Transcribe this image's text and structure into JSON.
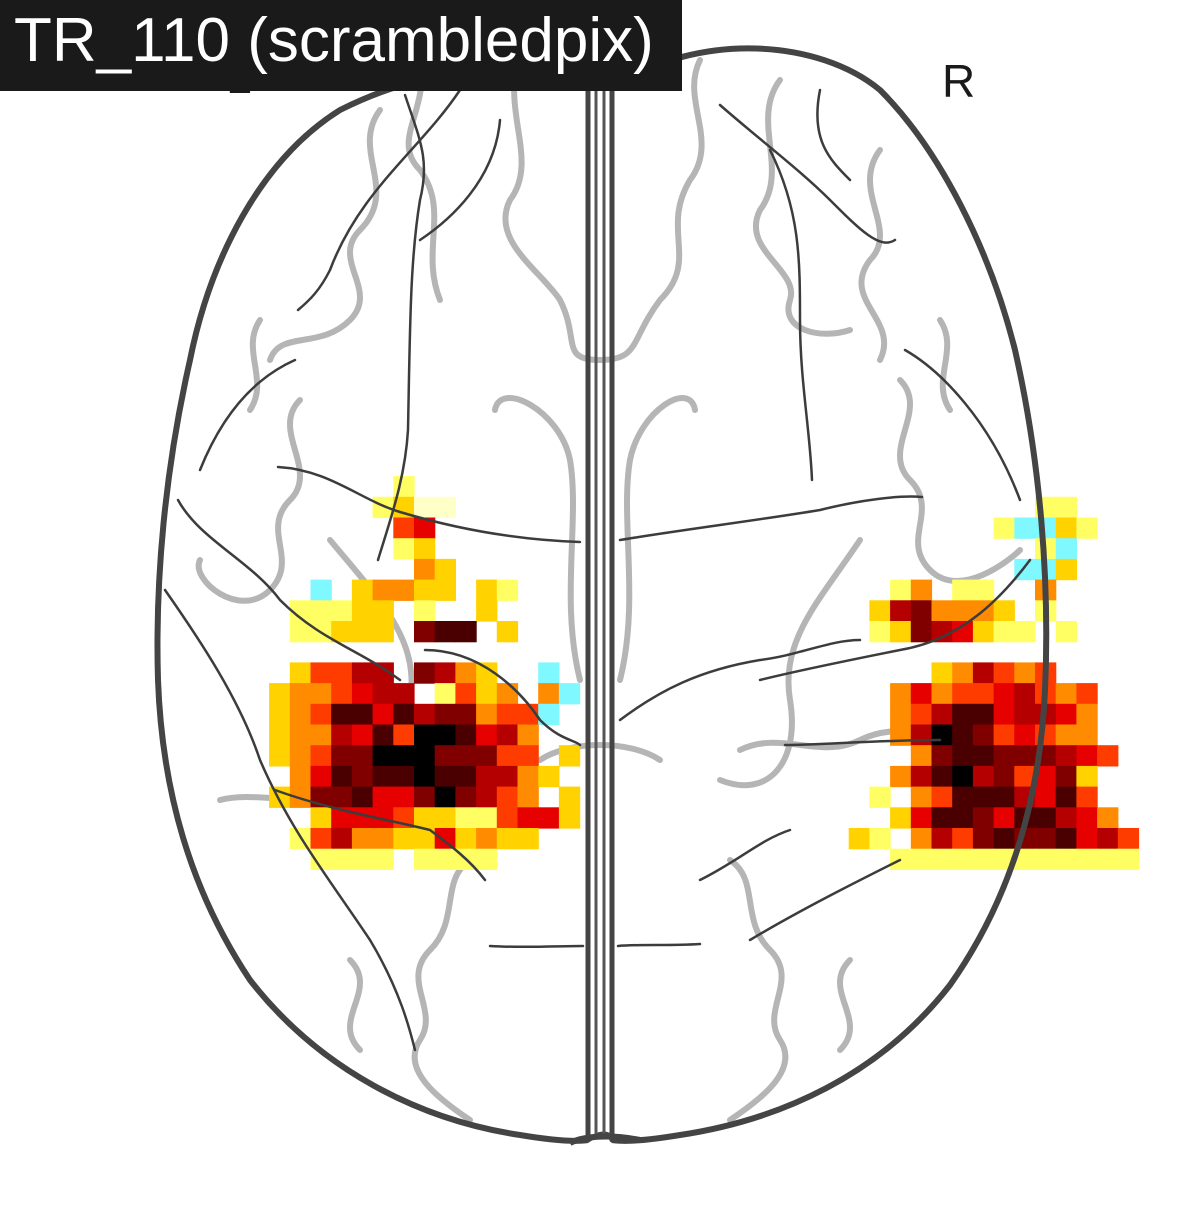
{
  "figure": {
    "title": "TR_110 (scrambledpix)",
    "view": "axial",
    "hemisphere_labels": {
      "left": "L",
      "right": "R"
    },
    "outline_color": "#444444",
    "sulci_color": "#b5b5b5",
    "colormap": [
      "#ffffc8",
      "#ffff64",
      "#ffd200",
      "#ff8c00",
      "#ff3c00",
      "#e60000",
      "#b40000",
      "#800000",
      "#4a0000",
      "#000000"
    ],
    "negative_color": "#7ff9ff",
    "activation_grid": {
      "rows": [
        "..........................................................",
        "..........................................................",
        "..........................................................",
        "..........................................................",
        "..........................................................",
        "..........................................................",
        "..........................................................",
        "..........................................................",
        "..........................................................",
        "..........................................................",
        "..........................................................",
        "..........................................................",
        "..........................................................",
        "..........................................................",
        "..........................................................",
        "..........................................................",
        "..........................................................",
        "..........................................................",
        "..........................................................",
        "..........................................................",
        "..........................................................",
        "..........................................................",
        "..........................................................",
        "...................1......................................",
        "..................1200............................11......",
        "...................45...........................1bb21.....",
        "...................12.............................1b......",
        "....................32...........................bb2......",
        "...............b.23322.21..................13.11..3.......",
        "..............11122.1..2..................2673332.1.......",
        "..............11222.788.2.................12765211.1......",
        "...........................................................",
        "..............24466.7632..b..................236434.......",
        ".............2334566.1423.3b...............3534456434......",
        ".............2348858677344a................3468856653......",
        ".............2336584998563.................3698745433.......",
        ".............2347799977744.2................3788777654......",
        "..............3587889886632................3689674572.......",
        ".............2377855797643.2..............1.348886584.......",
        "...............2555422114552...............25887588653......",
        "..............146332252322...............21.36478778564.....",
        "...............1111.1111...................111111111111.....",
        "..........................................................",
        ".........................................................."
      ],
      "legend": "digits 0-9 index colormap, b = negative (cyan), . = empty"
    }
  }
}
